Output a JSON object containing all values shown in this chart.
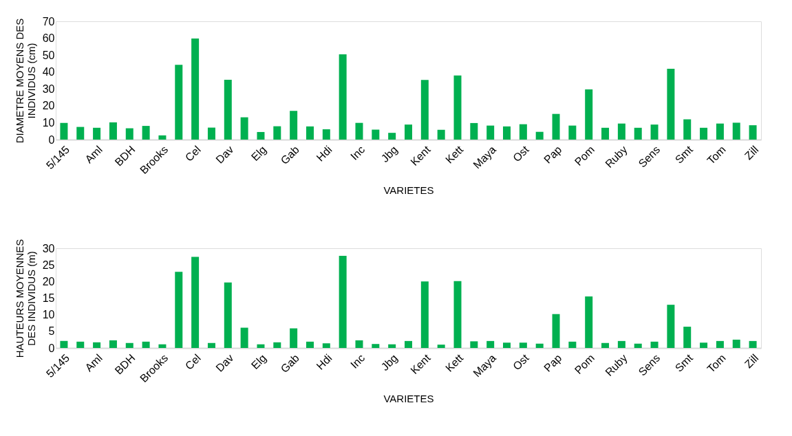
{
  "chart_data": [
    {
      "type": "bar",
      "xlabel": "VARIETES",
      "ylabel": "DIAMETRE MOYENS DES\nINDIVIDUS (cm)",
      "categories": [
        "5/145",
        null,
        "Aml",
        null,
        "BDH",
        null,
        "Brooks",
        null,
        "Cel",
        null,
        "Dav",
        null,
        "Elg",
        null,
        "Gab",
        null,
        "Hdi",
        null,
        "Inc",
        null,
        "Jbg",
        null,
        "Kent",
        null,
        "Kett",
        null,
        "Maya",
        null,
        "Ost",
        null,
        "Pap",
        null,
        "Pom",
        null,
        "Ruby",
        null,
        "Sens",
        null,
        "Smt",
        null,
        "Tom",
        null,
        "Zill"
      ],
      "values": [
        9.9,
        7.5,
        7.0,
        10.2,
        6.7,
        8.1,
        2.5,
        44.3,
        59.8,
        7.1,
        35.4,
        13.2,
        4.5,
        7.9,
        17.0,
        7.8,
        6.1,
        50.5,
        9.9,
        5.9,
        4.0,
        8.9,
        35.3,
        5.8,
        38.0,
        9.8,
        8.3,
        7.8,
        9.1,
        4.6,
        15.2,
        8.3,
        29.7,
        7.0,
        9.5,
        7.0,
        8.9,
        41.9,
        12.0,
        7.0,
        9.5,
        10.0,
        8.5
      ],
      "color": "#00b050",
      "ylim": [
        0,
        70
      ],
      "yticks": [
        0,
        10,
        20,
        30,
        40,
        50,
        60,
        70
      ],
      "grid": false
    },
    {
      "type": "bar",
      "xlabel": "VARIETES",
      "ylabel": "HAUTEURS MOYENNES\nDES INDIVIDUS (m)",
      "categories": [
        "5/145",
        null,
        "Aml",
        null,
        "BDH",
        null,
        "Brooks",
        null,
        "Cel",
        null,
        "Dav",
        null,
        "Elg",
        null,
        "Gab",
        null,
        "Hdi",
        null,
        "Inc",
        null,
        "Jbg",
        null,
        "Kent",
        null,
        "Kett",
        null,
        "Maya",
        null,
        "Ost",
        null,
        "Pap",
        null,
        "Pom",
        null,
        "Ruby",
        null,
        "Sens",
        null,
        "Smt",
        null,
        "Tom",
        null,
        "Zill"
      ],
      "values": [
        2.1,
        1.9,
        1.7,
        2.3,
        1.5,
        1.9,
        1.1,
        22.9,
        27.4,
        1.5,
        19.7,
        6.1,
        1.1,
        1.7,
        5.9,
        1.9,
        1.4,
        27.7,
        2.3,
        1.2,
        1.1,
        2.1,
        20.0,
        1.0,
        20.1,
        2.0,
        2.1,
        1.6,
        1.6,
        1.3,
        10.2,
        1.9,
        15.5,
        1.5,
        2.1,
        1.3,
        1.9,
        13.0,
        6.4,
        1.6,
        2.1,
        2.5,
        2.1
      ],
      "color": "#00b050",
      "ylim": [
        0,
        30
      ],
      "yticks": [
        0,
        5,
        10,
        15,
        20,
        25,
        30
      ],
      "grid": false
    }
  ]
}
